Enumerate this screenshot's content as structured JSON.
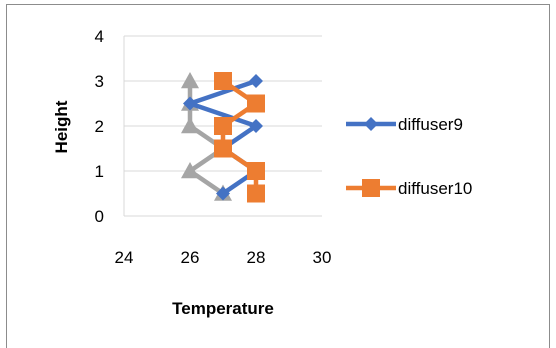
{
  "chart_data": {
    "type": "scatter",
    "title": "",
    "xlabel": "Temperature",
    "ylabel": "Height",
    "xlim": [
      24,
      30
    ],
    "ylim": [
      0,
      4
    ],
    "x_ticks": [
      "24",
      "26",
      "28",
      "30"
    ],
    "y_ticks": [
      "0",
      "1",
      "2",
      "3",
      "4"
    ],
    "grid": "horizontal",
    "legend_position": "right",
    "series": [
      {
        "name": "",
        "color": "#a5a5a5",
        "marker": "triangle",
        "points": [
          [
            27,
            0.5
          ],
          [
            26,
            1
          ],
          [
            27,
            1.5
          ],
          [
            26,
            2
          ],
          [
            26,
            2.5
          ],
          [
            26,
            3
          ]
        ]
      },
      {
        "name": "diffuser9",
        "color": "#4472c4",
        "marker": "diamond",
        "points": [
          [
            27,
            0.5
          ],
          [
            28,
            1
          ],
          [
            27,
            1.5
          ],
          [
            28,
            2
          ],
          [
            26,
            2.5
          ],
          [
            28,
            3
          ]
        ]
      },
      {
        "name": "diffuser10",
        "color": "#ed7d31",
        "marker": "square",
        "points": [
          [
            28,
            0.5
          ],
          [
            28,
            1
          ],
          [
            27,
            1.5
          ],
          [
            27,
            2
          ],
          [
            28,
            2.5
          ],
          [
            27,
            3
          ]
        ]
      }
    ]
  }
}
